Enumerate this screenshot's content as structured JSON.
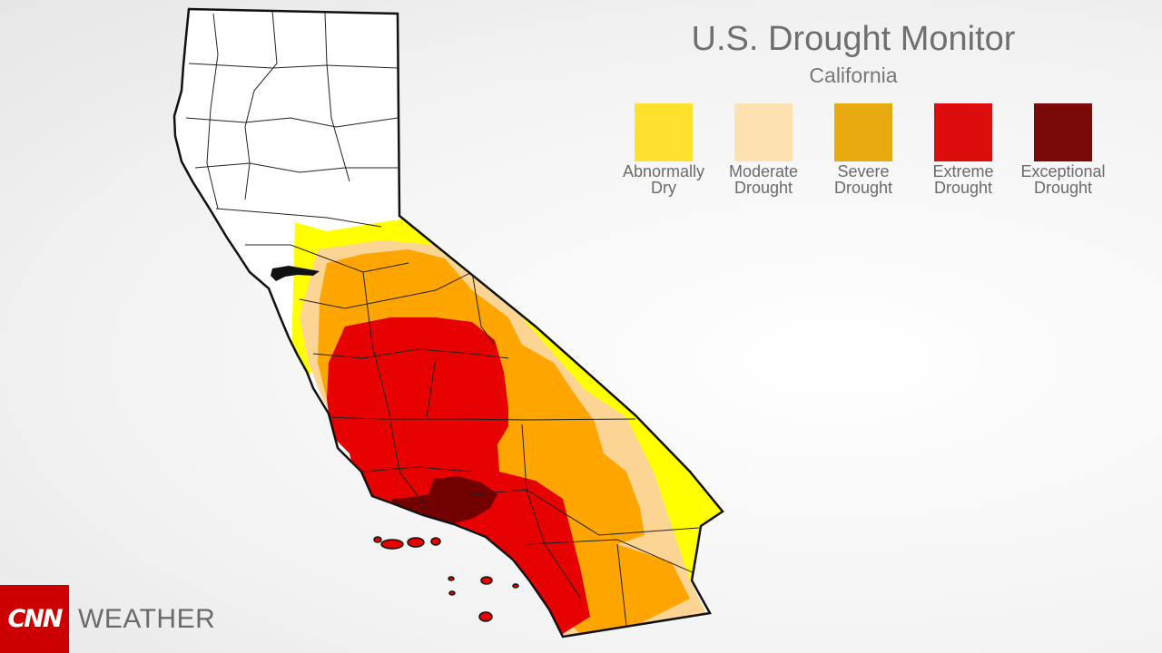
{
  "header": {
    "title": "U.S. Drought Monitor",
    "subtitle": "California"
  },
  "legend": [
    {
      "label": "Abnormally\nDry",
      "color": "#ffe12e"
    },
    {
      "label": "Moderate\nDrought",
      "color": "#fde1b0"
    },
    {
      "label": "Severe\nDrought",
      "color": "#e8a911"
    },
    {
      "label": "Extreme\nDrought",
      "color": "#dd0d0d"
    },
    {
      "label": "Exceptional\nDrought",
      "color": "#7a0a0a"
    }
  ],
  "map": {
    "region": "California",
    "base_color": "#ffffff",
    "border_color": "#111111"
  },
  "brand": {
    "logo_text": "CNN",
    "label": "WEATHER",
    "logo_color": "#cc0000"
  }
}
